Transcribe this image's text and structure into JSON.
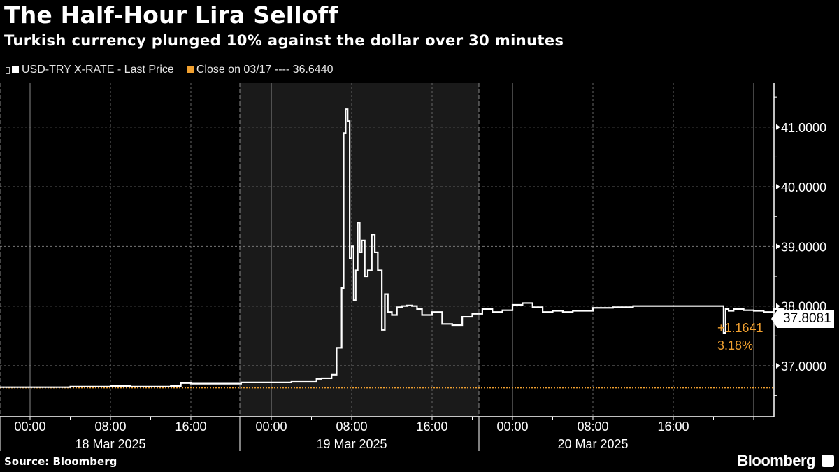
{
  "header": {
    "title": "The Half-Hour Lira Selloff",
    "subtitle": "Turkish currency plunged 10% against the dollar over 30 minutes"
  },
  "legend": {
    "series_label": "USD-TRY X-RATE - Last Price",
    "close_label": "Close on 03/17 ---- 36.6440",
    "series_color": "#ffffff",
    "close_color": "#f0a030"
  },
  "last_value": {
    "price": "37.8081",
    "change": "+1.1641",
    "change_pct": "3.18%"
  },
  "footer": {
    "source": "Source: Bloomberg",
    "brand": "Bloomberg"
  },
  "chart_data": {
    "type": "line",
    "title": "The Half-Hour Lira Selloff",
    "subtitle": "Turkish currency plunged 10% against the dollar over 30 minutes",
    "xlabel": "",
    "ylabel": "",
    "ylim": [
      36.2,
      41.75
    ],
    "y_ticks": [
      "37.0000",
      "38.0000",
      "39.0000",
      "40.0000",
      "41.0000"
    ],
    "x_ticks": [
      "00:00",
      "08:00",
      "16:00",
      "00:00",
      "08:00",
      "16:00",
      "00:00",
      "08:00",
      "16:00"
    ],
    "x_day_labels": [
      "18 Mar 2025",
      "19 Mar 2025",
      "20 Mar 2025"
    ],
    "grid": true,
    "legend_position": "top-left",
    "reference_line": {
      "name": "Close on 03/17",
      "value": 36.644,
      "color": "#f0a030",
      "style": "dotted"
    },
    "last_price": 37.8081,
    "change": 1.1641,
    "change_pct": 3.18,
    "series": [
      {
        "name": "USD-TRY X-RATE - Last Price",
        "hours_from_18mar_0000": [
          -3,
          0,
          4,
          8,
          10,
          12,
          14,
          15,
          16,
          18,
          20,
          21,
          24,
          26,
          28,
          28.5,
          29,
          30,
          30.5,
          31,
          31.2,
          31.4,
          31.6,
          31.8,
          32,
          32.2,
          32.4,
          32.6,
          32.8,
          33,
          33.3,
          33.6,
          34,
          34.3,
          34.6,
          35,
          35.3,
          35.6,
          36,
          36.5,
          37,
          37.5,
          38,
          38.5,
          39,
          40,
          41,
          42,
          43,
          44,
          45,
          46,
          47,
          48,
          49,
          50,
          51,
          52,
          53,
          54,
          56,
          58,
          60,
          62,
          64,
          66,
          68,
          69,
          69.2,
          69.5,
          70,
          71,
          72,
          73,
          74,
          75,
          76
        ],
        "values": [
          36.64,
          36.64,
          36.65,
          36.66,
          36.65,
          36.65,
          36.66,
          36.71,
          36.7,
          36.7,
          36.7,
          36.72,
          36.72,
          36.73,
          36.73,
          36.78,
          36.79,
          36.85,
          37.3,
          38.3,
          40.9,
          41.3,
          41.1,
          38.8,
          39.0,
          38.1,
          38.6,
          39.4,
          38.9,
          39.1,
          38.5,
          38.6,
          39.2,
          38.9,
          38.6,
          37.6,
          38.2,
          37.9,
          37.85,
          37.98,
          38.0,
          38.01,
          38.0,
          37.95,
          37.85,
          37.9,
          37.7,
          37.68,
          37.82,
          37.87,
          37.95,
          37.9,
          37.93,
          38.02,
          38.05,
          37.98,
          37.9,
          37.92,
          37.9,
          37.92,
          37.97,
          37.98,
          38.0,
          38.0,
          38.0,
          38.0,
          38.0,
          37.55,
          37.95,
          37.92,
          37.95,
          37.93,
          37.92,
          37.9,
          37.95,
          37.83,
          37.81
        ]
      }
    ]
  }
}
